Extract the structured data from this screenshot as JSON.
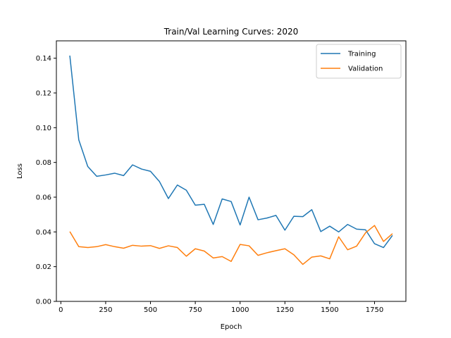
{
  "chart_data": {
    "type": "line",
    "title": "Train/Val Learning Curves: 2020",
    "xlabel": "Epoch",
    "ylabel": "Loss",
    "xlim": [
      -25,
      1925
    ],
    "ylim": [
      0,
      0.15
    ],
    "xticks": [
      0,
      250,
      500,
      750,
      1000,
      1250,
      1500,
      1750
    ],
    "yticks": [
      0.0,
      0.02,
      0.04,
      0.06,
      0.08,
      0.1,
      0.12,
      0.14
    ],
    "xtick_labels": [
      "0",
      "250",
      "500",
      "750",
      "1000",
      "1250",
      "1500",
      "1750"
    ],
    "ytick_labels": [
      "0.00",
      "0.02",
      "0.04",
      "0.06",
      "0.08",
      "0.10",
      "0.12",
      "0.14"
    ],
    "grid": false,
    "legend": "top-right",
    "x": [
      50,
      100,
      150,
      200,
      250,
      300,
      350,
      400,
      450,
      500,
      550,
      600,
      650,
      700,
      750,
      800,
      850,
      900,
      950,
      1000,
      1050,
      1100,
      1150,
      1200,
      1250,
      1300,
      1350,
      1400,
      1450,
      1500,
      1550,
      1600,
      1650,
      1700,
      1750,
      1800,
      1850
    ],
    "series": [
      {
        "name": "Training",
        "color": "#1f77b4",
        "values": [
          0.1415,
          0.093,
          0.0777,
          0.072,
          0.0728,
          0.0738,
          0.0724,
          0.0786,
          0.0762,
          0.0749,
          0.069,
          0.0592,
          0.067,
          0.064,
          0.0554,
          0.0559,
          0.0443,
          0.059,
          0.0575,
          0.044,
          0.06,
          0.047,
          0.048,
          0.0495,
          0.041,
          0.049,
          0.0488,
          0.0528,
          0.0402,
          0.0433,
          0.04,
          0.0443,
          0.0416,
          0.0412,
          0.0332,
          0.031,
          0.038
        ]
      },
      {
        "name": "Validation",
        "color": "#ff7f0e",
        "values": [
          0.0402,
          0.0315,
          0.031,
          0.0315,
          0.0327,
          0.0315,
          0.0306,
          0.0323,
          0.0318,
          0.0321,
          0.0305,
          0.032,
          0.031,
          0.026,
          0.0303,
          0.029,
          0.025,
          0.0258,
          0.023,
          0.0328,
          0.032,
          0.0265,
          0.028,
          0.0292,
          0.0303,
          0.0268,
          0.0213,
          0.0255,
          0.0262,
          0.0245,
          0.0372,
          0.0297,
          0.0318,
          0.0395,
          0.0437,
          0.0345,
          0.039
        ]
      }
    ]
  }
}
